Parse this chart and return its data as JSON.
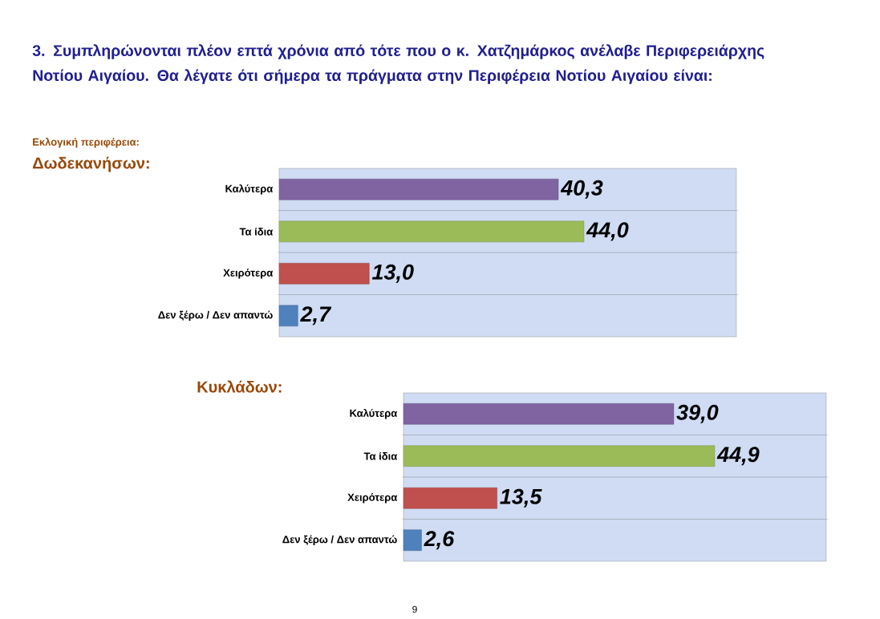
{
  "chart_data": [
    {
      "type": "bar",
      "orientation": "horizontal",
      "title": "3. Συμπληρώνονται πλέον επτά χρόνια από τότε που ο κ. Χατζημάρκος ανέλαβε Περιφερειάρχης Νοτίου Αιγαίου. Θα λέγατε ότι σήμερα τα πράγματα στην Περιφέρεια Νοτίου Αιγαίου είναι:",
      "subtitle": "Εκλογική περιφέρεια:",
      "annotations": [
        "Δωδεκανήσων:"
      ],
      "categories": [
        "Καλύτερα",
        "Τα ίδια",
        "Χειρότερα",
        "Δεν ξέρω / Δεν απαντώ"
      ],
      "values": [
        40.3,
        44.0,
        13.0,
        2.7
      ],
      "value_labels": [
        "40,3",
        "44,0",
        "13,0",
        "2,7"
      ],
      "colors": [
        "#8064a2",
        "#9bbb59",
        "#c0504d",
        "#4f81bd"
      ],
      "xlim": [
        0,
        66
      ],
      "tick_labels": "y",
      "grid": "y"
    },
    {
      "type": "bar",
      "orientation": "horizontal",
      "title": "Κυκλάδων:",
      "annotations": [
        "9"
      ],
      "categories": [
        "Καλύτερα",
        "Τα ίδια",
        "Χειρότερα",
        "Δεν ξέρω / Δεν απαντώ"
      ],
      "values": [
        39.0,
        44.9,
        13.5,
        2.6
      ],
      "value_labels": [
        "39,0",
        "44,9",
        "13,5",
        "2,6"
      ],
      "colors": [
        "#8064a2",
        "#9bbb59",
        "#c0504d",
        "#4f81bd"
      ],
      "xlim": [
        0,
        61
      ],
      "tick_labels": "y",
      "grid": "y"
    }
  ]
}
